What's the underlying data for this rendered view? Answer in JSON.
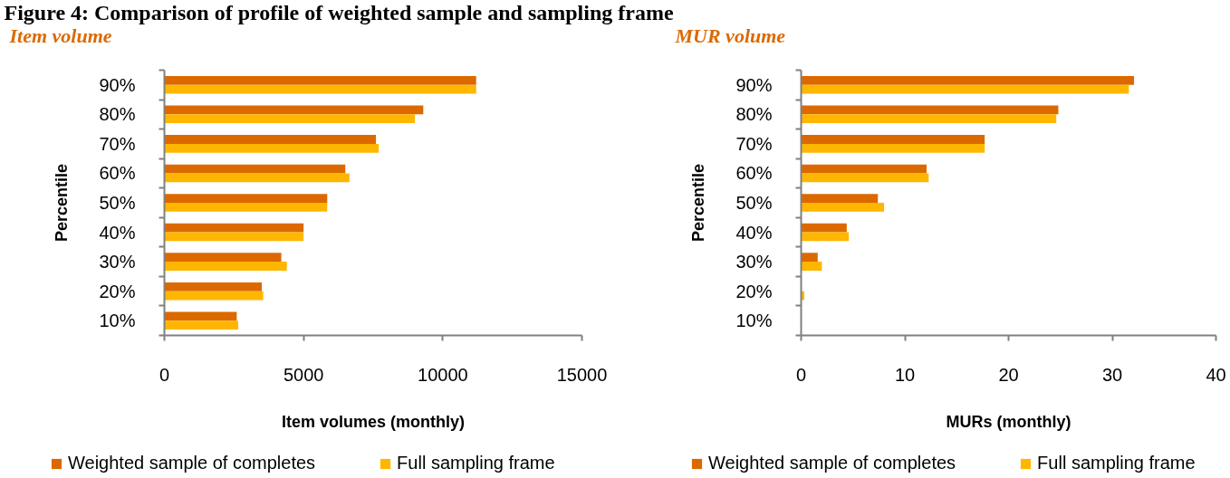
{
  "chart_data": [
    {
      "type": "bar",
      "orientation": "horizontal",
      "title": "Figure 4: Comparison of profile of weighted sample and sampling frame",
      "subtitle": "Item volume",
      "xlabel": "Item volumes (monthly)",
      "ylabel": "Percentile",
      "categories": [
        "90%",
        "80%",
        "70%",
        "60%",
        "50%",
        "40%",
        "30%",
        "20%",
        "10%"
      ],
      "series": [
        {
          "name": "Weighted sample of completes",
          "color": "#dc6900",
          "values": [
            11200,
            9300,
            7600,
            6500,
            5850,
            5000,
            4200,
            3500,
            2600
          ]
        },
        {
          "name": "Full sampling frame",
          "color": "#ffb600",
          "values": [
            11200,
            9000,
            7700,
            6650,
            5850,
            5000,
            4400,
            3550,
            2650
          ]
        }
      ],
      "xlim": [
        0,
        15000
      ],
      "xticks": [
        0,
        5000,
        10000,
        15000
      ],
      "grid": false,
      "legend": "bottom"
    },
    {
      "type": "bar",
      "orientation": "horizontal",
      "subtitle": "MUR volume",
      "xlabel": "MURs (monthly)",
      "ylabel": "Percentile",
      "categories": [
        "90%",
        "80%",
        "70%",
        "60%",
        "50%",
        "40%",
        "30%",
        "20%",
        "10%"
      ],
      "series": [
        {
          "name": "Weighted sample of completes",
          "color": "#dc6900",
          "values": [
            32.1,
            24.8,
            17.7,
            12.1,
            7.4,
            4.4,
            1.6,
            0,
            0
          ]
        },
        {
          "name": "Full sampling frame",
          "color": "#ffb600",
          "values": [
            31.6,
            24.6,
            17.7,
            12.3,
            8.0,
            4.6,
            2.0,
            0.3,
            0
          ]
        }
      ],
      "xlim": [
        0,
        40
      ],
      "xticks": [
        0,
        10,
        20,
        30,
        40
      ],
      "grid": false,
      "legend": "bottom"
    }
  ]
}
